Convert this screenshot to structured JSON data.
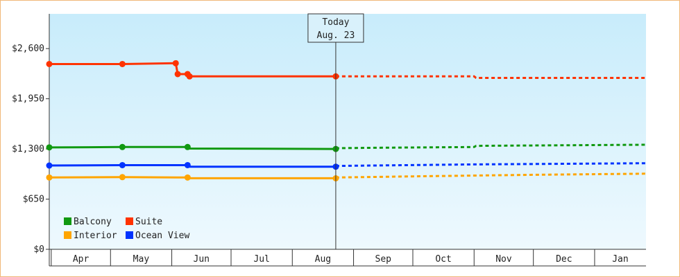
{
  "chart_data": {
    "type": "line",
    "title": "",
    "xlabel": "",
    "ylabel": "",
    "ylim": [
      0,
      3050
    ],
    "yticks": [
      0,
      650,
      1300,
      1950,
      2600
    ],
    "ytick_labels": [
      "$0",
      "$650",
      "$1,300",
      "$1,950",
      "$2,600"
    ],
    "x_domain": [
      "2024-03-31",
      "2025-01-27"
    ],
    "month_labels": [
      "Apr",
      "May",
      "Jun",
      "Jul",
      "Aug",
      "Sep",
      "Oct",
      "Nov",
      "Dec",
      "Jan"
    ],
    "today": {
      "date": "2024-08-23",
      "label_line1": "Today",
      "label_line2": "Aug. 23"
    },
    "grid": false,
    "legend_position": "bottom-left",
    "series": [
      {
        "name": "Suite",
        "color": "#ff3300",
        "history": [
          {
            "x": "2024-03-31",
            "y": 2400
          },
          {
            "x": "2024-05-07",
            "y": 2400
          },
          {
            "x": "2024-06-03",
            "y": 2410
          },
          {
            "x": "2024-06-04",
            "y": 2270
          },
          {
            "x": "2024-06-09",
            "y": 2270
          },
          {
            "x": "2024-06-10",
            "y": 2240
          },
          {
            "x": "2024-08-23",
            "y": 2240
          }
        ],
        "markers": [
          "2024-03-31",
          "2024-05-07",
          "2024-06-03",
          "2024-06-04",
          "2024-06-09",
          "2024-06-10",
          "2024-08-23"
        ],
        "forecast": [
          {
            "x": "2024-08-23",
            "y": 2240
          },
          {
            "x": "2024-11-01",
            "y": 2240
          },
          {
            "x": "2024-11-02",
            "y": 2220
          },
          {
            "x": "2025-01-27",
            "y": 2220
          }
        ]
      },
      {
        "name": "Balcony",
        "color": "#119911",
        "history": [
          {
            "x": "2024-03-31",
            "y": 1320
          },
          {
            "x": "2024-05-07",
            "y": 1325
          },
          {
            "x": "2024-06-09",
            "y": 1325
          },
          {
            "x": "2024-06-10",
            "y": 1305
          },
          {
            "x": "2024-08-23",
            "y": 1300
          }
        ],
        "markers": [
          "2024-03-31",
          "2024-05-07",
          "2024-06-09",
          "2024-08-23"
        ],
        "forecast": [
          {
            "x": "2024-08-23",
            "y": 1310
          },
          {
            "x": "2024-09-11",
            "y": 1315
          },
          {
            "x": "2024-11-01",
            "y": 1325
          },
          {
            "x": "2024-11-02",
            "y": 1340
          },
          {
            "x": "2025-01-27",
            "y": 1355
          }
        ]
      },
      {
        "name": "Ocean View",
        "color": "#0033ff",
        "history": [
          {
            "x": "2024-03-31",
            "y": 1085
          },
          {
            "x": "2024-05-07",
            "y": 1090
          },
          {
            "x": "2024-06-09",
            "y": 1090
          },
          {
            "x": "2024-06-10",
            "y": 1070
          },
          {
            "x": "2024-08-23",
            "y": 1070
          }
        ],
        "markers": [
          "2024-03-31",
          "2024-05-07",
          "2024-06-09",
          "2024-08-23"
        ],
        "forecast": [
          {
            "x": "2024-08-23",
            "y": 1080
          },
          {
            "x": "2024-09-11",
            "y": 1085
          },
          {
            "x": "2024-11-01",
            "y": 1100
          },
          {
            "x": "2025-01-27",
            "y": 1115
          }
        ]
      },
      {
        "name": "Interior",
        "color": "#ffa500",
        "history": [
          {
            "x": "2024-03-31",
            "y": 930
          },
          {
            "x": "2024-05-07",
            "y": 935
          },
          {
            "x": "2024-06-09",
            "y": 930
          },
          {
            "x": "2024-06-10",
            "y": 920
          },
          {
            "x": "2024-08-23",
            "y": 920
          }
        ],
        "markers": [
          "2024-03-31",
          "2024-05-07",
          "2024-06-09",
          "2024-08-23"
        ],
        "forecast": [
          {
            "x": "2024-08-23",
            "y": 930
          },
          {
            "x": "2024-10-01",
            "y": 945
          },
          {
            "x": "2024-11-01",
            "y": 955
          },
          {
            "x": "2024-12-01",
            "y": 965
          },
          {
            "x": "2025-01-27",
            "y": 980
          }
        ]
      }
    ],
    "legend": [
      {
        "name": "Balcony",
        "color": "#119911"
      },
      {
        "name": "Suite",
        "color": "#ff3300"
      },
      {
        "name": "Interior",
        "color": "#ffa500"
      },
      {
        "name": "Ocean View",
        "color": "#0033ff"
      }
    ]
  }
}
